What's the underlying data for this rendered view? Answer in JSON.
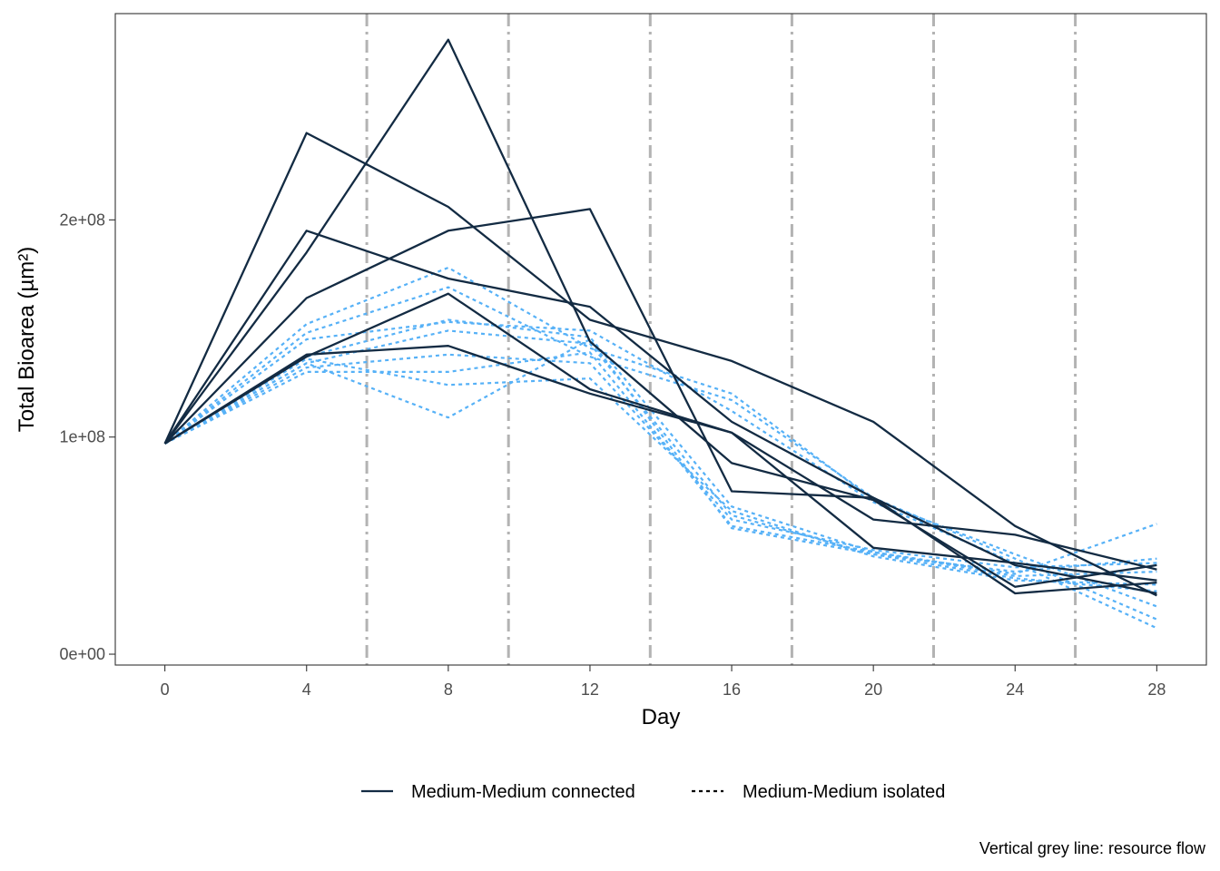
{
  "chart_data": {
    "type": "line",
    "xlabel": "Day",
    "ylabel": "Total Bioarea (µm²)",
    "xlim": [
      -1.4,
      29.4
    ],
    "ylim": [
      -5000000,
      295000000
    ],
    "x_ticks": [
      0,
      4,
      8,
      12,
      16,
      20,
      24,
      28
    ],
    "x_tick_labels": [
      "0",
      "4",
      "8",
      "12",
      "16",
      "20",
      "24",
      "28"
    ],
    "y_ticks": [
      0,
      100000000,
      200000000
    ],
    "y_tick_labels": [
      "0e+00",
      "1e+08",
      "2e+08"
    ],
    "grid": false,
    "legend": {
      "position": "bottom",
      "entries": [
        {
          "label": "Medium-Medium connected",
          "style": "solid",
          "color": "#132B43"
        },
        {
          "label": "Medium-Medium isolated",
          "style": "dashed",
          "color": "#56B1F7"
        }
      ]
    },
    "resource_flow_days": [
      5.7,
      9.7,
      13.7,
      17.7,
      21.7,
      25.7
    ],
    "resource_flow_color": "#B3B3B3",
    "caption": "Vertical grey line: resource flow",
    "x": [
      0,
      4,
      8,
      12,
      16,
      20,
      24,
      28
    ],
    "series": [
      {
        "group": "connected",
        "values": [
          97000000,
          240000000,
          206000000,
          154000000,
          135000000,
          107000000,
          59000000,
          27000000
        ]
      },
      {
        "group": "connected",
        "values": [
          97000000,
          185000000,
          283000000,
          144000000,
          88000000,
          71000000,
          31000000,
          41000000
        ]
      },
      {
        "group": "connected",
        "values": [
          97000000,
          195000000,
          173000000,
          160000000,
          107000000,
          72000000,
          41000000,
          28000000
        ]
      },
      {
        "group": "connected",
        "values": [
          97000000,
          164000000,
          195000000,
          205000000,
          75000000,
          72000000,
          28000000,
          33000000
        ]
      },
      {
        "group": "connected",
        "values": [
          97000000,
          138000000,
          142000000,
          120000000,
          102000000,
          49000000,
          42000000,
          34000000
        ]
      },
      {
        "group": "connected",
        "values": [
          97000000,
          137000000,
          166000000,
          122000000,
          102000000,
          62000000,
          55000000,
          39000000
        ]
      },
      {
        "group": "isolated",
        "values": [
          97000000,
          152000000,
          178000000,
          141000000,
          120000000,
          71000000,
          46000000,
          22000000
        ]
      },
      {
        "group": "isolated",
        "values": [
          97000000,
          148000000,
          169000000,
          137000000,
          117000000,
          72000000,
          44000000,
          16000000
        ]
      },
      {
        "group": "isolated",
        "values": [
          97000000,
          145000000,
          153000000,
          149000000,
          112000000,
          70000000,
          42000000,
          12000000
        ]
      },
      {
        "group": "isolated",
        "values": [
          97000000,
          137000000,
          154000000,
          146000000,
          68000000,
          47000000,
          37000000,
          60000000
        ]
      },
      {
        "group": "isolated",
        "values": [
          97000000,
          134000000,
          149000000,
          143000000,
          64000000,
          46000000,
          38000000,
          44000000
        ]
      },
      {
        "group": "isolated",
        "values": [
          97000000,
          132000000,
          138000000,
          134000000,
          62000000,
          48000000,
          40000000,
          42000000
        ]
      },
      {
        "group": "isolated",
        "values": [
          97000000,
          130000000,
          130000000,
          139000000,
          59000000,
          47000000,
          36000000,
          38000000
        ]
      },
      {
        "group": "isolated",
        "values": [
          97000000,
          136000000,
          124000000,
          127000000,
          66000000,
          45000000,
          34000000,
          32000000
        ]
      },
      {
        "group": "isolated",
        "values": [
          97000000,
          134000000,
          109000000,
          145000000,
          58000000,
          46000000,
          35000000,
          29000000
        ]
      }
    ]
  }
}
